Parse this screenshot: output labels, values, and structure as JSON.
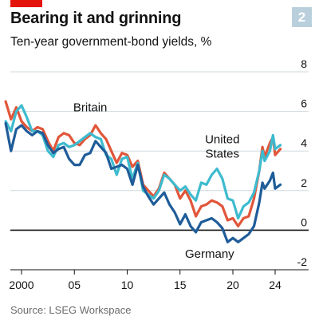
{
  "badge": "2",
  "chart_data": {
    "type": "line",
    "title": "Bearing it and grinning",
    "subtitle": "Ten-year government-bond yields, %",
    "source": "Source: LSEG Workspace",
    "xlim": [
      2000,
      2024.5
    ],
    "ylim": [
      -2,
      8
    ],
    "yticks": [
      {
        "value": 8,
        "label": "8"
      },
      {
        "value": 6,
        "label": "6"
      },
      {
        "value": 4,
        "label": "4"
      },
      {
        "value": 2,
        "label": "2"
      },
      {
        "value": 0,
        "label": "0"
      },
      {
        "value": -2,
        "label": "-2"
      }
    ],
    "xticks": [
      {
        "value": 2000,
        "label": "2000"
      },
      {
        "value": 2005,
        "label": "05"
      },
      {
        "value": 2010,
        "label": "10"
      },
      {
        "value": 2015,
        "label": "15"
      },
      {
        "value": 2020,
        "label": "20"
      },
      {
        "value": 2024,
        "label": "24"
      }
    ],
    "grid": "horizontal",
    "series": [
      {
        "name": "Britain",
        "color": "#e1563a",
        "label_lines": [
          "Britain"
        ],
        "label_at": {
          "x": 2006.5,
          "y": 6.0
        },
        "points": [
          [
            1998.5,
            6.5
          ],
          [
            1999.0,
            5.6
          ],
          [
            1999.5,
            6.2
          ],
          [
            2000.0,
            5.5
          ],
          [
            2000.5,
            5.2
          ],
          [
            2001.0,
            5.0
          ],
          [
            2001.5,
            5.2
          ],
          [
            2002.0,
            5.1
          ],
          [
            2002.5,
            4.5
          ],
          [
            2003.0,
            4.0
          ],
          [
            2003.5,
            4.7
          ],
          [
            2004.0,
            4.9
          ],
          [
            2004.5,
            4.8
          ],
          [
            2005.0,
            4.4
          ],
          [
            2005.5,
            4.3
          ],
          [
            2006.0,
            4.6
          ],
          [
            2006.5,
            4.8
          ],
          [
            2007.0,
            5.3
          ],
          [
            2007.5,
            4.9
          ],
          [
            2008.0,
            4.6
          ],
          [
            2008.5,
            4.0
          ],
          [
            2009.0,
            3.4
          ],
          [
            2009.5,
            3.9
          ],
          [
            2010.0,
            3.8
          ],
          [
            2010.5,
            3.2
          ],
          [
            2011.0,
            3.5
          ],
          [
            2011.5,
            2.3
          ],
          [
            2012.0,
            2.0
          ],
          [
            2012.5,
            1.7
          ],
          [
            2013.0,
            2.1
          ],
          [
            2013.5,
            2.9
          ],
          [
            2014.0,
            2.6
          ],
          [
            2014.5,
            2.3
          ],
          [
            2015.0,
            1.6
          ],
          [
            2015.5,
            2.0
          ],
          [
            2016.0,
            1.5
          ],
          [
            2016.5,
            0.7
          ],
          [
            2017.0,
            1.2
          ],
          [
            2017.5,
            1.3
          ],
          [
            2018.0,
            1.5
          ],
          [
            2018.5,
            1.4
          ],
          [
            2019.0,
            1.2
          ],
          [
            2019.5,
            0.5
          ],
          [
            2020.0,
            0.6
          ],
          [
            2020.5,
            0.2
          ],
          [
            2021.0,
            0.6
          ],
          [
            2021.5,
            0.7
          ],
          [
            2022.0,
            1.6
          ],
          [
            2022.5,
            3.0
          ],
          [
            2022.8,
            4.2
          ],
          [
            2023.0,
            3.7
          ],
          [
            2023.5,
            4.4
          ],
          [
            2023.8,
            4.7
          ],
          [
            2024.0,
            3.8
          ],
          [
            2024.5,
            4.1
          ]
        ]
      },
      {
        "name": "United States",
        "color": "#3ebbce",
        "label_lines": [
          "United",
          "States"
        ],
        "label_at": {
          "x": 2019.0,
          "y": 4.4
        },
        "points": [
          [
            1998.5,
            5.5
          ],
          [
            1999.0,
            5.0
          ],
          [
            1999.5,
            6.0
          ],
          [
            2000.0,
            6.3
          ],
          [
            2000.5,
            5.7
          ],
          [
            2001.0,
            5.0
          ],
          [
            2001.5,
            5.0
          ],
          [
            2002.0,
            4.8
          ],
          [
            2002.5,
            4.0
          ],
          [
            2003.0,
            3.7
          ],
          [
            2003.5,
            4.3
          ],
          [
            2004.0,
            4.4
          ],
          [
            2004.5,
            4.2
          ],
          [
            2005.0,
            4.3
          ],
          [
            2005.5,
            4.5
          ],
          [
            2006.0,
            4.7
          ],
          [
            2006.5,
            4.9
          ],
          [
            2007.0,
            4.7
          ],
          [
            2007.5,
            4.6
          ],
          [
            2008.0,
            3.8
          ],
          [
            2008.5,
            3.6
          ],
          [
            2009.0,
            2.8
          ],
          [
            2009.5,
            3.6
          ],
          [
            2010.0,
            3.7
          ],
          [
            2010.5,
            2.6
          ],
          [
            2011.0,
            3.4
          ],
          [
            2011.5,
            2.0
          ],
          [
            2012.0,
            1.8
          ],
          [
            2012.5,
            1.6
          ],
          [
            2013.0,
            2.0
          ],
          [
            2013.5,
            2.8
          ],
          [
            2014.0,
            2.6
          ],
          [
            2014.5,
            2.3
          ],
          [
            2015.0,
            2.0
          ],
          [
            2015.5,
            2.2
          ],
          [
            2016.0,
            1.8
          ],
          [
            2016.5,
            1.5
          ],
          [
            2017.0,
            2.4
          ],
          [
            2017.5,
            2.3
          ],
          [
            2018.0,
            2.8
          ],
          [
            2018.5,
            3.1
          ],
          [
            2019.0,
            2.6
          ],
          [
            2019.5,
            1.6
          ],
          [
            2020.0,
            1.5
          ],
          [
            2020.5,
            0.6
          ],
          [
            2021.0,
            1.2
          ],
          [
            2021.5,
            1.4
          ],
          [
            2022.0,
            1.9
          ],
          [
            2022.5,
            3.0
          ],
          [
            2022.8,
            4.0
          ],
          [
            2023.0,
            3.5
          ],
          [
            2023.5,
            4.0
          ],
          [
            2023.8,
            4.8
          ],
          [
            2024.0,
            4.1
          ],
          [
            2024.5,
            4.3
          ]
        ]
      },
      {
        "name": "Germany",
        "color": "#1f5c99",
        "label_lines": [
          "Germany"
        ],
        "label_at": {
          "x": 2017.8,
          "y": -1.4
        },
        "points": [
          [
            1998.5,
            5.4
          ],
          [
            1999.0,
            4.0
          ],
          [
            1999.5,
            5.1
          ],
          [
            2000.0,
            5.3
          ],
          [
            2000.5,
            5.0
          ],
          [
            2001.0,
            4.8
          ],
          [
            2001.5,
            5.0
          ],
          [
            2002.0,
            4.9
          ],
          [
            2002.5,
            4.3
          ],
          [
            2003.0,
            3.9
          ],
          [
            2003.5,
            4.1
          ],
          [
            2004.0,
            4.2
          ],
          [
            2004.5,
            3.6
          ],
          [
            2005.0,
            3.3
          ],
          [
            2005.5,
            3.3
          ],
          [
            2006.0,
            3.8
          ],
          [
            2006.5,
            3.9
          ],
          [
            2007.0,
            4.5
          ],
          [
            2007.5,
            4.2
          ],
          [
            2008.0,
            3.9
          ],
          [
            2008.5,
            3.1
          ],
          [
            2009.0,
            3.2
          ],
          [
            2009.5,
            3.3
          ],
          [
            2010.0,
            3.1
          ],
          [
            2010.5,
            2.3
          ],
          [
            2011.0,
            3.3
          ],
          [
            2011.5,
            2.2
          ],
          [
            2012.0,
            1.7
          ],
          [
            2012.5,
            1.3
          ],
          [
            2013.0,
            1.6
          ],
          [
            2013.5,
            1.9
          ],
          [
            2014.0,
            1.3
          ],
          [
            2014.5,
            0.9
          ],
          [
            2015.0,
            0.3
          ],
          [
            2015.5,
            0.8
          ],
          [
            2016.0,
            0.2
          ],
          [
            2016.5,
            -0.1
          ],
          [
            2017.0,
            0.4
          ],
          [
            2017.5,
            0.5
          ],
          [
            2018.0,
            0.6
          ],
          [
            2018.5,
            0.4
          ],
          [
            2019.0,
            0.1
          ],
          [
            2019.5,
            -0.6
          ],
          [
            2020.0,
            -0.4
          ],
          [
            2020.5,
            -0.6
          ],
          [
            2021.0,
            -0.4
          ],
          [
            2021.5,
            -0.2
          ],
          [
            2022.0,
            0.2
          ],
          [
            2022.5,
            1.4
          ],
          [
            2022.8,
            2.4
          ],
          [
            2023.0,
            2.1
          ],
          [
            2023.5,
            2.5
          ],
          [
            2023.8,
            2.9
          ],
          [
            2024.0,
            2.1
          ],
          [
            2024.5,
            2.3
          ]
        ]
      }
    ]
  }
}
